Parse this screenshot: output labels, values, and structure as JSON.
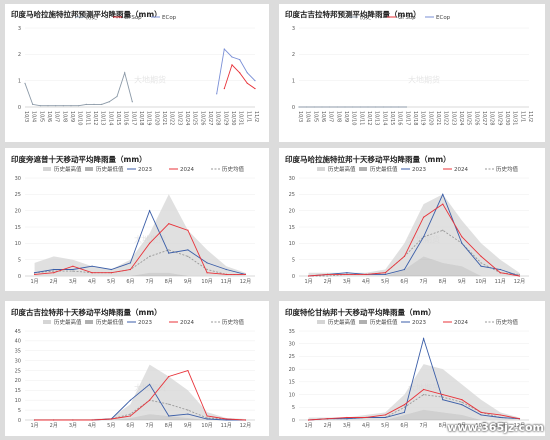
{
  "watermark": "www.365jz.com",
  "charts_watermark": "大地期货",
  "colors": {
    "hist": "#8c9aa8",
    "gfs": "#e8333a",
    "ec": "#7a8fd6",
    "max": "#d5d5d5",
    "min": "#b0b0b0",
    "y2023": "#3b5ea8",
    "y2024": "#e8333a",
    "avg": "#999999"
  },
  "chart_data": [
    {
      "type": "line",
      "title": "印度马哈拉施特拉邦预测平均降雨量（mm）",
      "ylim": [
        0,
        3
      ],
      "yticks": [
        0,
        1,
        2,
        3
      ],
      "categories": [
        "10/3",
        "10/4",
        "10/5",
        "10/6",
        "10/7",
        "10/8",
        "10/9",
        "10/10",
        "10/11",
        "10/12",
        "10/13",
        "10/14",
        "10/15",
        "10/16",
        "10/17",
        "10/18",
        "10/19",
        "10/20",
        "10/21",
        "10/22",
        "10/23",
        "10/24",
        "10/25",
        "10/26",
        "10/27",
        "10/28",
        "10/29",
        "10/30",
        "10/31",
        "11/1",
        "11/2"
      ],
      "series": [
        {
          "name": "历史",
          "key": "hist",
          "values": [
            0.9,
            0.1,
            0.05,
            0.05,
            0.05,
            0.05,
            0.05,
            0.05,
            0.1,
            0.1,
            0.1,
            0.2,
            0.4,
            1.3,
            0.2,
            null,
            null,
            null,
            null,
            null,
            null,
            null,
            null,
            null,
            null,
            null,
            null,
            null,
            null,
            null,
            null
          ]
        },
        {
          "name": "GFSop",
          "key": "gfs",
          "values": [
            null,
            null,
            null,
            null,
            null,
            null,
            null,
            null,
            null,
            null,
            null,
            null,
            null,
            null,
            null,
            null,
            null,
            null,
            null,
            null,
            null,
            null,
            null,
            null,
            null,
            null,
            0.7,
            1.6,
            1.3,
            0.9,
            0.7
          ]
        },
        {
          "name": "ECop",
          "key": "ec",
          "values": [
            null,
            null,
            null,
            null,
            null,
            null,
            null,
            null,
            null,
            null,
            null,
            null,
            null,
            null,
            null,
            null,
            null,
            null,
            null,
            null,
            null,
            null,
            null,
            null,
            null,
            0.5,
            2.2,
            1.9,
            1.8,
            1.3,
            1.0
          ]
        }
      ]
    },
    {
      "type": "line",
      "title": "印度古吉拉特邦预测平均降雨量（mm）",
      "ylim": [
        0,
        3
      ],
      "yticks": [
        0,
        1,
        2,
        3
      ],
      "categories": [
        "10/3",
        "10/4",
        "10/5",
        "10/6",
        "10/7",
        "10/8",
        "10/9",
        "10/10",
        "10/11",
        "10/12",
        "10/13",
        "10/14",
        "10/15",
        "10/16",
        "10/17",
        "10/18",
        "10/19",
        "10/20",
        "10/21",
        "10/22",
        "10/23",
        "10/24",
        "10/25",
        "10/26",
        "10/27",
        "10/28",
        "10/29",
        "10/30",
        "10/31",
        "11/1",
        "11/2"
      ],
      "series": [
        {
          "name": "历史",
          "key": "hist",
          "values": [
            0,
            0,
            0,
            0,
            0,
            0,
            0,
            0,
            0,
            0,
            0,
            0,
            0,
            0,
            0,
            null,
            null,
            null,
            null,
            null,
            null,
            null,
            null,
            null,
            null,
            null,
            null,
            null,
            null,
            null,
            null
          ]
        },
        {
          "name": "GFSop",
          "key": "gfs",
          "values": [
            null,
            null,
            null,
            null,
            null,
            null,
            null,
            null,
            null,
            null,
            null,
            null,
            null,
            null,
            null,
            null,
            null,
            null,
            null,
            null,
            null,
            null,
            null,
            null,
            null,
            null,
            null,
            null,
            null,
            null,
            null
          ]
        },
        {
          "name": "ECop",
          "key": "ec",
          "values": [
            null,
            null,
            null,
            null,
            null,
            null,
            null,
            null,
            null,
            null,
            null,
            null,
            null,
            null,
            null,
            null,
            null,
            null,
            null,
            null,
            null,
            null,
            null,
            null,
            null,
            null,
            null,
            null,
            null,
            null,
            null
          ]
        }
      ]
    },
    {
      "type": "area",
      "title": "印度旁遮普十天移动平均降雨量（mm）",
      "ylim": [
        0,
        30
      ],
      "yticks": [
        0,
        5,
        10,
        15,
        20,
        25,
        30
      ],
      "categories": [
        "1月",
        "2月",
        "3月",
        "4月",
        "5月",
        "6月",
        "7月",
        "8月",
        "9月",
        "10月",
        "11月",
        "12月"
      ],
      "legend": [
        "历史最高值",
        "历史最低值",
        "2023",
        "2024",
        "历史均值"
      ],
      "series": [
        {
          "name": "历史最高值",
          "key": "max",
          "values": [
            4,
            6,
            5,
            3,
            2,
            5,
            13,
            25,
            14,
            8,
            3,
            1
          ]
        },
        {
          "name": "历史最低值",
          "key": "min",
          "values": [
            0,
            0,
            0,
            0,
            0,
            0,
            1,
            1,
            0,
            0,
            0,
            0
          ]
        },
        {
          "name": "2023",
          "key": "y2023",
          "values": [
            1,
            2,
            2,
            3,
            2,
            4,
            20,
            7,
            8,
            4,
            2,
            0.5
          ]
        },
        {
          "name": "2024",
          "key": "y2024",
          "values": [
            0.5,
            1,
            3,
            1,
            1,
            2,
            10,
            16,
            14,
            1,
            0.5,
            0.5
          ]
        },
        {
          "name": "历史均值",
          "key": "avg",
          "values": [
            1,
            1.5,
            1.5,
            1,
            1,
            2,
            6,
            8,
            6,
            2,
            0.5,
            0.5
          ]
        }
      ]
    },
    {
      "type": "area",
      "title": "印度马哈拉施特拉邦十天移动平均降雨量（mm）",
      "ylim": [
        0,
        30
      ],
      "yticks": [
        0,
        5,
        10,
        15,
        20,
        25,
        30
      ],
      "categories": [
        "1月",
        "2月",
        "3月",
        "4月",
        "5月",
        "6月",
        "7月",
        "8月",
        "9月",
        "10月",
        "11月",
        "12月"
      ],
      "legend": [
        "历史最高值",
        "历史最低值",
        "2023",
        "2024",
        "历史均值"
      ],
      "series": [
        {
          "name": "历史最高值",
          "key": "max",
          "values": [
            1,
            1,
            1,
            1,
            2,
            10,
            22,
            25,
            17,
            10,
            5,
            1
          ]
        },
        {
          "name": "历史最低值",
          "key": "min",
          "values": [
            0,
            0,
            0,
            0,
            0,
            2,
            6,
            4,
            3,
            0,
            0,
            0
          ]
        },
        {
          "name": "2023",
          "key": "y2023",
          "values": [
            0,
            0.5,
            1,
            0.5,
            0.5,
            2,
            12,
            25,
            10,
            3,
            2,
            0
          ]
        },
        {
          "name": "2024",
          "key": "y2024",
          "values": [
            0,
            0.5,
            0.5,
            0.5,
            1,
            6,
            18,
            22,
            12,
            6,
            1,
            0
          ]
        },
        {
          "name": "历史均值",
          "key": "avg",
          "values": [
            0,
            0,
            0.5,
            0.5,
            1,
            6,
            12,
            14,
            10,
            4,
            1,
            0.5
          ]
        }
      ]
    },
    {
      "type": "area",
      "title": "印度古吉拉特邦十天移动平均降雨量（mm）",
      "ylim": [
        0,
        45
      ],
      "yticks": [
        0,
        5,
        10,
        15,
        20,
        25,
        30,
        35,
        40,
        45
      ],
      "categories": [
        "1月",
        "2月",
        "3月",
        "4月",
        "5月",
        "6月",
        "7月",
        "8月",
        "9月",
        "10月",
        "11月",
        "12月"
      ],
      "legend": [
        "历史最高值",
        "历史最低值",
        "2023",
        "2024",
        "历史均值"
      ],
      "series": [
        {
          "name": "历史最高值",
          "key": "max",
          "values": [
            0.5,
            0.5,
            0.5,
            0.5,
            1,
            8,
            28,
            22,
            15,
            4,
            1,
            0.5
          ]
        },
        {
          "name": "历史最低值",
          "key": "min",
          "values": [
            0,
            0,
            0,
            0,
            0,
            1,
            3,
            2,
            1,
            0,
            0,
            0
          ]
        },
        {
          "name": "2023",
          "key": "y2023",
          "values": [
            0,
            0,
            0,
            0,
            0.5,
            10,
            18,
            2,
            3,
            0.5,
            0,
            0
          ]
        },
        {
          "name": "2024",
          "key": "y2024",
          "values": [
            0,
            0,
            0,
            0,
            0.5,
            2,
            10,
            22,
            25,
            2,
            0.5,
            0
          ]
        },
        {
          "name": "历史均值",
          "key": "avg",
          "values": [
            0,
            0,
            0,
            0,
            0.5,
            3,
            10,
            8,
            5,
            1,
            0.5,
            0
          ]
        }
      ]
    },
    {
      "type": "area",
      "title": "印度特伦甘纳邦十天移动平均降雨量（mm）",
      "ylim": [
        0,
        35
      ],
      "yticks": [
        0,
        5,
        10,
        15,
        20,
        25,
        30,
        35
      ],
      "categories": [
        "1月",
        "2月",
        "3月",
        "4月",
        "5月",
        "6月",
        "7月",
        "8月",
        "9月",
        "10月",
        "11月",
        "12月"
      ],
      "legend": [
        "历史最高值",
        "历史最低值",
        "2023",
        "2024",
        "历史均值"
      ],
      "series": [
        {
          "name": "历史最高值",
          "key": "max",
          "values": [
            1,
            1,
            1,
            2,
            3,
            10,
            22,
            20,
            14,
            8,
            3,
            1
          ]
        },
        {
          "name": "历史最低值",
          "key": "min",
          "values": [
            0,
            0,
            0,
            0,
            0,
            2,
            4,
            3,
            2,
            0,
            0,
            0
          ]
        },
        {
          "name": "2023",
          "key": "y2023",
          "values": [
            0,
            0.5,
            0.5,
            1,
            1,
            3,
            32,
            8,
            6,
            2,
            1,
            0.5
          ]
        },
        {
          "name": "2024",
          "key": "y2024",
          "values": [
            0,
            0.5,
            1,
            1,
            2,
            6,
            12,
            10,
            8,
            3,
            2,
            0.5
          ]
        },
        {
          "name": "历史均值",
          "key": "avg",
          "values": [
            0,
            0.5,
            0.5,
            1,
            1,
            5,
            10,
            9,
            7,
            3,
            1,
            0.5
          ]
        }
      ]
    }
  ]
}
